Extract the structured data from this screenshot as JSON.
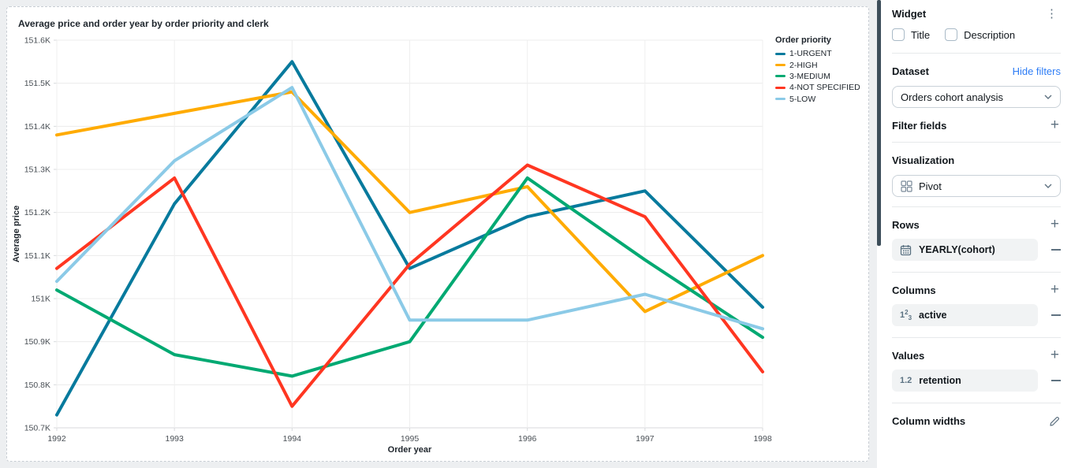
{
  "chart_data": {
    "type": "line",
    "title": "Average price and order year by order priority and clerk",
    "xlabel": "Order year",
    "ylabel": "Average price",
    "x": [
      1992,
      1993,
      1994,
      1995,
      1996,
      1997,
      1998
    ],
    "ylim": [
      150700,
      151600
    ],
    "y_tick_step": 100,
    "y_tick_format": "thousands-K",
    "grid": true,
    "legend_title": "Order priority",
    "legend_position": "top-right",
    "series": [
      {
        "name": "1-URGENT",
        "color": "#077A9D",
        "values": [
          150730,
          151220,
          151550,
          151070,
          151190,
          151250,
          150980
        ]
      },
      {
        "name": "2-HIGH",
        "color": "#FFAB00",
        "values": [
          151380,
          151430,
          151480,
          151200,
          151260,
          150970,
          151100
        ]
      },
      {
        "name": "3-MEDIUM",
        "color": "#00A972",
        "values": [
          151020,
          150870,
          150820,
          150900,
          151280,
          151090,
          150910
        ]
      },
      {
        "name": "4-NOT SPECIFIED",
        "color": "#FF3621",
        "values": [
          151070,
          151280,
          150750,
          151080,
          151310,
          151190,
          150830
        ]
      },
      {
        "name": "5-LOW",
        "color": "#8BCAE7",
        "values": [
          151040,
          151320,
          151490,
          150950,
          150950,
          151010,
          150930
        ]
      }
    ]
  },
  "panel": {
    "title": "Widget",
    "checkboxes": [
      {
        "label": "Title",
        "checked": false
      },
      {
        "label": "Description",
        "checked": false
      }
    ],
    "dataset": {
      "label": "Dataset",
      "link": "Hide filters",
      "selected": "Orders cohort analysis"
    },
    "filter_fields": {
      "label": "Filter fields"
    },
    "visualization": {
      "label": "Visualization",
      "selected": "Pivot"
    },
    "rows": {
      "label": "Rows",
      "items": [
        {
          "label": "YEARLY(cohort)",
          "icon": "calendar-icon"
        }
      ]
    },
    "columns": {
      "label": "Columns",
      "items": [
        {
          "label": "active",
          "icon": "number-123-icon"
        }
      ]
    },
    "values": {
      "label": "Values",
      "items": [
        {
          "label": "retention",
          "icon": "decimal-1-2-icon"
        }
      ]
    },
    "column_widths": {
      "label": "Column widths"
    }
  },
  "colors": {
    "link_blue": "#2e7df6",
    "scrollbar_thumb": "#3d4e5a",
    "page_background": "#edeff1"
  }
}
